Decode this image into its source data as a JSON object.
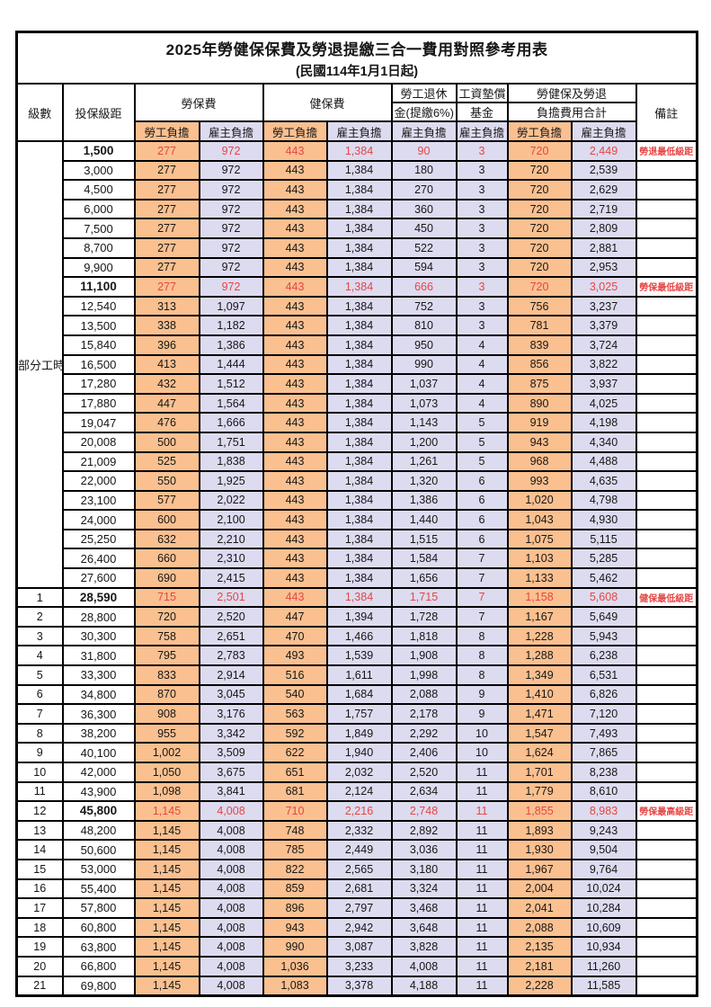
{
  "title": "2025年勞健保保費及勞退提繳三合一費用對照參考用表",
  "subtitle": "(民國114年1月1日起)",
  "colors": {
    "employee_bg": "#FAC090",
    "employer_bg": "#DDDBEF",
    "highlight_text": "#E64545",
    "border": "#000000"
  },
  "header": {
    "level": "級數",
    "bracket": "投保級距",
    "labor_insurance": "勞保費",
    "health_insurance": "健保費",
    "pension_line1": "勞工退休",
    "pension_line2": "金(提繳6%)",
    "wage_fund_line1": "工資墊償",
    "wage_fund_line2": "基金",
    "total_line1": "勞健保及勞退",
    "total_line2": "負擔費用合計",
    "remark": "備註",
    "employee_share": "勞工負擔",
    "employer_share": "雇主負擔"
  },
  "part_time_label": "部分工時",
  "part_time_rowspan": 23,
  "column_roles": [
    "employee",
    "employer",
    "employee",
    "employer",
    "employer",
    "employer",
    "employee",
    "employer"
  ],
  "rows": [
    {
      "level": "",
      "bracket": "1,500",
      "values": [
        "277",
        "972",
        "443",
        "1,384",
        "90",
        "3",
        "720",
        "2,449"
      ],
      "remark": "勞退最低級距",
      "highlight": true
    },
    {
      "level": "",
      "bracket": "3,000",
      "values": [
        "277",
        "972",
        "443",
        "1,384",
        "180",
        "3",
        "720",
        "2,539"
      ],
      "remark": "",
      "highlight": false
    },
    {
      "level": "",
      "bracket": "4,500",
      "values": [
        "277",
        "972",
        "443",
        "1,384",
        "270",
        "3",
        "720",
        "2,629"
      ],
      "remark": "",
      "highlight": false
    },
    {
      "level": "",
      "bracket": "6,000",
      "values": [
        "277",
        "972",
        "443",
        "1,384",
        "360",
        "3",
        "720",
        "2,719"
      ],
      "remark": "",
      "highlight": false
    },
    {
      "level": "",
      "bracket": "7,500",
      "values": [
        "277",
        "972",
        "443",
        "1,384",
        "450",
        "3",
        "720",
        "2,809"
      ],
      "remark": "",
      "highlight": false
    },
    {
      "level": "",
      "bracket": "8,700",
      "values": [
        "277",
        "972",
        "443",
        "1,384",
        "522",
        "3",
        "720",
        "2,881"
      ],
      "remark": "",
      "highlight": false
    },
    {
      "level": "",
      "bracket": "9,900",
      "values": [
        "277",
        "972",
        "443",
        "1,384",
        "594",
        "3",
        "720",
        "2,953"
      ],
      "remark": "",
      "highlight": false
    },
    {
      "level": "",
      "bracket": "11,100",
      "values": [
        "277",
        "972",
        "443",
        "1,384",
        "666",
        "3",
        "720",
        "3,025"
      ],
      "remark": "勞保最低級距",
      "highlight": true
    },
    {
      "level": "",
      "bracket": "12,540",
      "values": [
        "313",
        "1,097",
        "443",
        "1,384",
        "752",
        "3",
        "756",
        "3,237"
      ],
      "remark": "",
      "highlight": false
    },
    {
      "level": "",
      "bracket": "13,500",
      "values": [
        "338",
        "1,182",
        "443",
        "1,384",
        "810",
        "3",
        "781",
        "3,379"
      ],
      "remark": "",
      "highlight": false
    },
    {
      "level": "",
      "bracket": "15,840",
      "values": [
        "396",
        "1,386",
        "443",
        "1,384",
        "950",
        "4",
        "839",
        "3,724"
      ],
      "remark": "",
      "highlight": false
    },
    {
      "level": "",
      "bracket": "16,500",
      "values": [
        "413",
        "1,444",
        "443",
        "1,384",
        "990",
        "4",
        "856",
        "3,822"
      ],
      "remark": "",
      "highlight": false
    },
    {
      "level": "",
      "bracket": "17,280",
      "values": [
        "432",
        "1,512",
        "443",
        "1,384",
        "1,037",
        "4",
        "875",
        "3,937"
      ],
      "remark": "",
      "highlight": false
    },
    {
      "level": "",
      "bracket": "17,880",
      "values": [
        "447",
        "1,564",
        "443",
        "1,384",
        "1,073",
        "4",
        "890",
        "4,025"
      ],
      "remark": "",
      "highlight": false
    },
    {
      "level": "",
      "bracket": "19,047",
      "values": [
        "476",
        "1,666",
        "443",
        "1,384",
        "1,143",
        "5",
        "919",
        "4,198"
      ],
      "remark": "",
      "highlight": false
    },
    {
      "level": "",
      "bracket": "20,008",
      "values": [
        "500",
        "1,751",
        "443",
        "1,384",
        "1,200",
        "5",
        "943",
        "4,340"
      ],
      "remark": "",
      "highlight": false
    },
    {
      "level": "",
      "bracket": "21,009",
      "values": [
        "525",
        "1,838",
        "443",
        "1,384",
        "1,261",
        "5",
        "968",
        "4,488"
      ],
      "remark": "",
      "highlight": false
    },
    {
      "level": "",
      "bracket": "22,000",
      "values": [
        "550",
        "1,925",
        "443",
        "1,384",
        "1,320",
        "6",
        "993",
        "4,635"
      ],
      "remark": "",
      "highlight": false
    },
    {
      "level": "",
      "bracket": "23,100",
      "values": [
        "577",
        "2,022",
        "443",
        "1,384",
        "1,386",
        "6",
        "1,020",
        "4,798"
      ],
      "remark": "",
      "highlight": false
    },
    {
      "level": "",
      "bracket": "24,000",
      "values": [
        "600",
        "2,100",
        "443",
        "1,384",
        "1,440",
        "6",
        "1,043",
        "4,930"
      ],
      "remark": "",
      "highlight": false
    },
    {
      "level": "",
      "bracket": "25,250",
      "values": [
        "632",
        "2,210",
        "443",
        "1,384",
        "1,515",
        "6",
        "1,075",
        "5,115"
      ],
      "remark": "",
      "highlight": false
    },
    {
      "level": "",
      "bracket": "26,400",
      "values": [
        "660",
        "2,310",
        "443",
        "1,384",
        "1,584",
        "7",
        "1,103",
        "5,285"
      ],
      "remark": "",
      "highlight": false
    },
    {
      "level": "",
      "bracket": "27,600",
      "values": [
        "690",
        "2,415",
        "443",
        "1,384",
        "1,656",
        "7",
        "1,133",
        "5,462"
      ],
      "remark": "",
      "highlight": false
    },
    {
      "level": "1",
      "bracket": "28,590",
      "values": [
        "715",
        "2,501",
        "443",
        "1,384",
        "1,715",
        "7",
        "1,158",
        "5,608"
      ],
      "remark": "健保最低級距",
      "highlight": true
    },
    {
      "level": "2",
      "bracket": "28,800",
      "values": [
        "720",
        "2,520",
        "447",
        "1,394",
        "1,728",
        "7",
        "1,167",
        "5,649"
      ],
      "remark": "",
      "highlight": false
    },
    {
      "level": "3",
      "bracket": "30,300",
      "values": [
        "758",
        "2,651",
        "470",
        "1,466",
        "1,818",
        "8",
        "1,228",
        "5,943"
      ],
      "remark": "",
      "highlight": false
    },
    {
      "level": "4",
      "bracket": "31,800",
      "values": [
        "795",
        "2,783",
        "493",
        "1,539",
        "1,908",
        "8",
        "1,288",
        "6,238"
      ],
      "remark": "",
      "highlight": false
    },
    {
      "level": "5",
      "bracket": "33,300",
      "values": [
        "833",
        "2,914",
        "516",
        "1,611",
        "1,998",
        "8",
        "1,349",
        "6,531"
      ],
      "remark": "",
      "highlight": false
    },
    {
      "level": "6",
      "bracket": "34,800",
      "values": [
        "870",
        "3,045",
        "540",
        "1,684",
        "2,088",
        "9",
        "1,410",
        "6,826"
      ],
      "remark": "",
      "highlight": false
    },
    {
      "level": "7",
      "bracket": "36,300",
      "values": [
        "908",
        "3,176",
        "563",
        "1,757",
        "2,178",
        "9",
        "1,471",
        "7,120"
      ],
      "remark": "",
      "highlight": false
    },
    {
      "level": "8",
      "bracket": "38,200",
      "values": [
        "955",
        "3,342",
        "592",
        "1,849",
        "2,292",
        "10",
        "1,547",
        "7,493"
      ],
      "remark": "",
      "highlight": false
    },
    {
      "level": "9",
      "bracket": "40,100",
      "values": [
        "1,002",
        "3,509",
        "622",
        "1,940",
        "2,406",
        "10",
        "1,624",
        "7,865"
      ],
      "remark": "",
      "highlight": false
    },
    {
      "level": "10",
      "bracket": "42,000",
      "values": [
        "1,050",
        "3,675",
        "651",
        "2,032",
        "2,520",
        "11",
        "1,701",
        "8,238"
      ],
      "remark": "",
      "highlight": false
    },
    {
      "level": "11",
      "bracket": "43,900",
      "values": [
        "1,098",
        "3,841",
        "681",
        "2,124",
        "2,634",
        "11",
        "1,779",
        "8,610"
      ],
      "remark": "",
      "highlight": false
    },
    {
      "level": "12",
      "bracket": "45,800",
      "values": [
        "1,145",
        "4,008",
        "710",
        "2,216",
        "2,748",
        "11",
        "1,855",
        "8,983"
      ],
      "remark": "勞保最高級距",
      "highlight": true
    },
    {
      "level": "13",
      "bracket": "48,200",
      "values": [
        "1,145",
        "4,008",
        "748",
        "2,332",
        "2,892",
        "11",
        "1,893",
        "9,243"
      ],
      "remark": "",
      "highlight": false
    },
    {
      "level": "14",
      "bracket": "50,600",
      "values": [
        "1,145",
        "4,008",
        "785",
        "2,449",
        "3,036",
        "11",
        "1,930",
        "9,504"
      ],
      "remark": "",
      "highlight": false
    },
    {
      "level": "15",
      "bracket": "53,000",
      "values": [
        "1,145",
        "4,008",
        "822",
        "2,565",
        "3,180",
        "11",
        "1,967",
        "9,764"
      ],
      "remark": "",
      "highlight": false
    },
    {
      "level": "16",
      "bracket": "55,400",
      "values": [
        "1,145",
        "4,008",
        "859",
        "2,681",
        "3,324",
        "11",
        "2,004",
        "10,024"
      ],
      "remark": "",
      "highlight": false
    },
    {
      "level": "17",
      "bracket": "57,800",
      "values": [
        "1,145",
        "4,008",
        "896",
        "2,797",
        "3,468",
        "11",
        "2,041",
        "10,284"
      ],
      "remark": "",
      "highlight": false
    },
    {
      "level": "18",
      "bracket": "60,800",
      "values": [
        "1,145",
        "4,008",
        "943",
        "2,942",
        "3,648",
        "11",
        "2,088",
        "10,609"
      ],
      "remark": "",
      "highlight": false
    },
    {
      "level": "19",
      "bracket": "63,800",
      "values": [
        "1,145",
        "4,008",
        "990",
        "3,087",
        "3,828",
        "11",
        "2,135",
        "10,934"
      ],
      "remark": "",
      "highlight": false
    },
    {
      "level": "20",
      "bracket": "66,800",
      "values": [
        "1,145",
        "4,008",
        "1,036",
        "3,233",
        "4,008",
        "11",
        "2,181",
        "11,260"
      ],
      "remark": "",
      "highlight": false
    },
    {
      "level": "21",
      "bracket": "69,800",
      "values": [
        "1,145",
        "4,008",
        "1,083",
        "3,378",
        "4,188",
        "11",
        "2,228",
        "11,585"
      ],
      "remark": "",
      "highlight": false
    }
  ]
}
